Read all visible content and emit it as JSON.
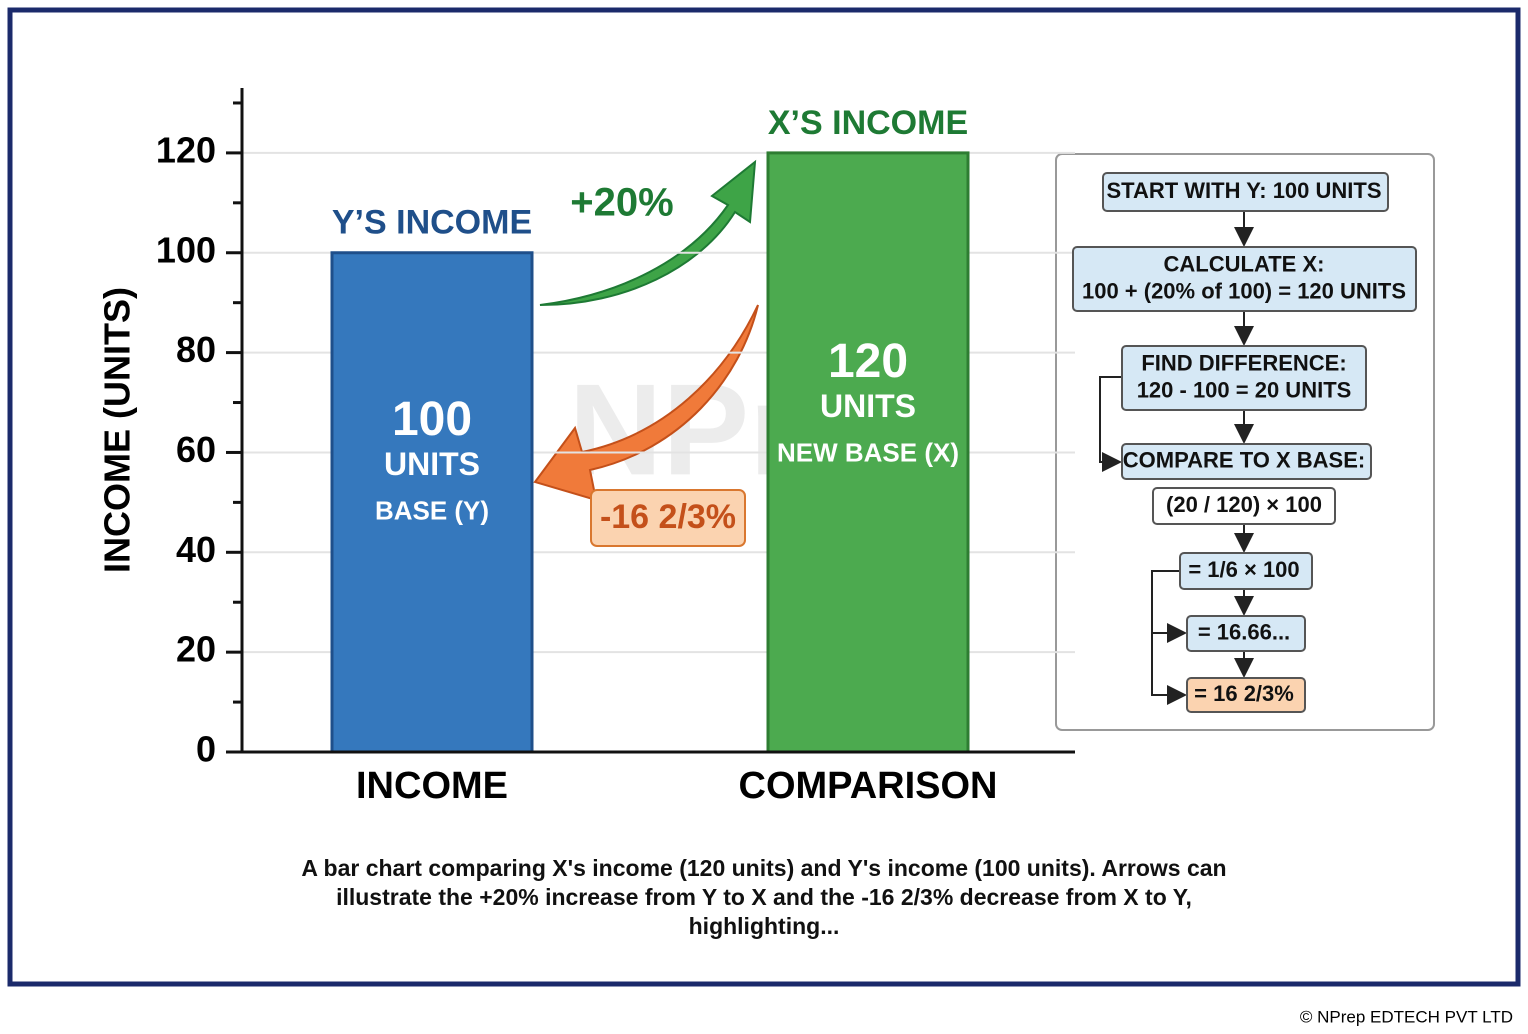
{
  "chart_data": {
    "type": "bar",
    "y_label": "INCOME (UNITS)",
    "categories": [
      "INCOME",
      "COMPARISON"
    ],
    "values": [
      100,
      120
    ],
    "colors": [
      "#3578bd",
      "#4caa4f"
    ],
    "edge_colors": [
      "#1f4f8a",
      "#2e7d32"
    ],
    "bar_titles": [
      "Y’S INCOME",
      "X’S INCOME"
    ],
    "bar_title_colors": [
      "#1f4f8a",
      "#1e7a34"
    ],
    "bar_units": [
      "UNITS",
      "UNITS"
    ],
    "bar_notes": [
      "BASE (Y)",
      "NEW BASE (X)"
    ],
    "ylim": [
      0,
      133
    ],
    "yticks": [
      0,
      20,
      40,
      60,
      80,
      100,
      120
    ],
    "minor_yticks": [
      10,
      30,
      50,
      70,
      90,
      110,
      130
    ],
    "grid": true,
    "increase_label": "+20%",
    "decrease_label": "-16 2/3%",
    "watermark": "NPrep"
  },
  "flowchart": {
    "steps": [
      {
        "lines": [
          "START WITH Y: 100 UNITS"
        ],
        "fill": "#d6e8f5"
      },
      {
        "lines": [
          "CALCULATE X:",
          "100 + (20% of 100) = 120 UNITS"
        ],
        "fill": "#d6e8f5"
      },
      {
        "lines": [
          "FIND DIFFERENCE:",
          "120 - 100 = 20 UNITS"
        ],
        "fill": "#d6e8f5"
      },
      {
        "lines": [
          "COMPARE TO X BASE:"
        ],
        "fill": "#d6e8f5"
      },
      {
        "lines": [
          "(20 / 120) × 100"
        ],
        "fill": "#ffffff"
      },
      {
        "lines": [
          "= 1/6 × 100"
        ],
        "fill": "#d6e8f5"
      },
      {
        "lines": [
          "= 16.66..."
        ],
        "fill": "#d6e8f5"
      },
      {
        "lines": [
          "= 16 2/3%"
        ],
        "fill": "#fbd3b0"
      }
    ]
  },
  "caption": [
    "A bar chart comparing X's income (120 units) and Y's income (100 units). Arrows can",
    "illustrate the +20% increase from Y to X and the -16 2/3% decrease from X to Y,",
    "highlighting..."
  ],
  "copyright": "© NPrep EDTECH PVT LTD"
}
